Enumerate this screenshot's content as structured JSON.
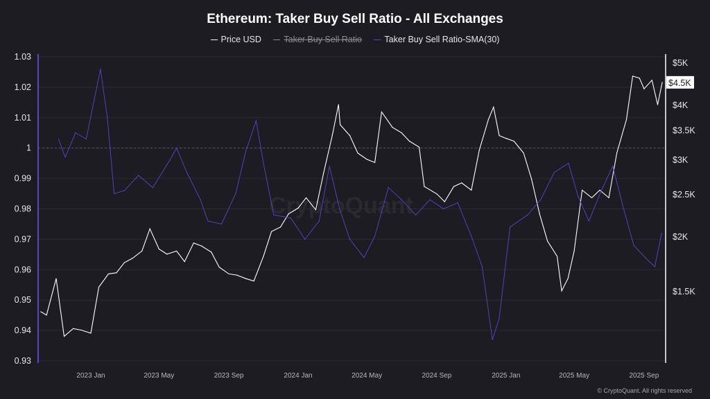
{
  "chart_data": {
    "type": "line",
    "title": "Ethereum: Taker Buy Sell Ratio - All Exchanges",
    "legend": [
      {
        "label": "Price USD",
        "color": "#ffffff",
        "hidden": false
      },
      {
        "label": "Taker Buy Sell Ratio",
        "color": "#8d8c95",
        "hidden": true
      },
      {
        "label": "Taker Buy Sell Ratio-SMA(30)",
        "color": "#5a46c8",
        "hidden": false
      }
    ],
    "legend_position": "top",
    "grid": true,
    "x_ticks": [
      "2023 Jan",
      "2023 May",
      "2023 Sep",
      "2024 Jan",
      "2024 May",
      "2024 Sep",
      "2025 Jan",
      "2025 May",
      "2025 Sep"
    ],
    "x_tick_dates": [
      "2023-01-01",
      "2023-05-01",
      "2023-09-01",
      "2024-01-01",
      "2024-05-01",
      "2024-09-01",
      "2025-01-01",
      "2025-05-01",
      "2025-09-01"
    ],
    "xlim": [
      "2022-10-01",
      "2025-10-05"
    ],
    "y_left": {
      "ticks": [
        "1.03",
        "1.02",
        "1.01",
        "1",
        "0.99",
        "0.98",
        "0.97",
        "0.96",
        "0.95",
        "0.94",
        "0.93"
      ],
      "ylim": [
        0.93,
        1.03
      ],
      "reference_line": 1
    },
    "y_right": {
      "ticks": [
        "$5K",
        "$4.5K",
        "$4K",
        "$3.5K",
        "$3K",
        "$2.5K",
        "$2K",
        "$1.5K"
      ],
      "tick_values": [
        5000,
        4500,
        4000,
        3500,
        3000,
        2500,
        2000,
        1500
      ],
      "scale": "log",
      "ylim": [
        1040,
        5150
      ]
    },
    "current_price_label": "$4.5K",
    "series": [
      {
        "name": "Price USD",
        "axis": "right",
        "color": "#ffffff",
        "points": [
          [
            "2022-10-05",
            1344
          ],
          [
            "2022-10-15",
            1320
          ],
          [
            "2022-11-01",
            1600
          ],
          [
            "2022-11-15",
            1180
          ],
          [
            "2022-12-01",
            1230
          ],
          [
            "2022-12-15",
            1220
          ],
          [
            "2023-01-01",
            1200
          ],
          [
            "2023-01-15",
            1530
          ],
          [
            "2023-02-01",
            1640
          ],
          [
            "2023-02-15",
            1650
          ],
          [
            "2023-03-01",
            1740
          ],
          [
            "2023-03-15",
            1780
          ],
          [
            "2023-04-01",
            1850
          ],
          [
            "2023-04-15",
            2080
          ],
          [
            "2023-05-01",
            1870
          ],
          [
            "2023-05-15",
            1820
          ],
          [
            "2023-06-01",
            1850
          ],
          [
            "2023-06-15",
            1750
          ],
          [
            "2023-07-01",
            1930
          ],
          [
            "2023-07-15",
            1900
          ],
          [
            "2023-08-01",
            1840
          ],
          [
            "2023-08-15",
            1700
          ],
          [
            "2023-09-01",
            1640
          ],
          [
            "2023-09-15",
            1630
          ],
          [
            "2023-10-01",
            1600
          ],
          [
            "2023-10-15",
            1580
          ],
          [
            "2023-11-01",
            1800
          ],
          [
            "2023-11-15",
            2050
          ],
          [
            "2023-12-01",
            2100
          ],
          [
            "2023-12-15",
            2250
          ],
          [
            "2024-01-01",
            2320
          ],
          [
            "2024-01-15",
            2450
          ],
          [
            "2024-02-01",
            2300
          ],
          [
            "2024-02-15",
            2800
          ],
          [
            "2024-03-01",
            3400
          ],
          [
            "2024-03-12",
            4000
          ],
          [
            "2024-03-15",
            3600
          ],
          [
            "2024-04-01",
            3400
          ],
          [
            "2024-04-15",
            3100
          ],
          [
            "2024-05-01",
            3000
          ],
          [
            "2024-05-15",
            2950
          ],
          [
            "2024-05-27",
            3850
          ],
          [
            "2024-06-15",
            3550
          ],
          [
            "2024-07-01",
            3450
          ],
          [
            "2024-07-15",
            3300
          ],
          [
            "2024-08-01",
            3200
          ],
          [
            "2024-08-10",
            2600
          ],
          [
            "2024-09-01",
            2500
          ],
          [
            "2024-09-15",
            2400
          ],
          [
            "2024-10-01",
            2600
          ],
          [
            "2024-10-15",
            2650
          ],
          [
            "2024-11-01",
            2550
          ],
          [
            "2024-11-15",
            3150
          ],
          [
            "2024-12-01",
            3700
          ],
          [
            "2024-12-10",
            3950
          ],
          [
            "2024-12-20",
            3400
          ],
          [
            "2025-01-01",
            3350
          ],
          [
            "2025-01-15",
            3300
          ],
          [
            "2025-02-01",
            3100
          ],
          [
            "2025-02-15",
            2700
          ],
          [
            "2025-03-01",
            2250
          ],
          [
            "2025-03-15",
            1950
          ],
          [
            "2025-04-01",
            1800
          ],
          [
            "2025-04-09",
            1500
          ],
          [
            "2025-04-20",
            1600
          ],
          [
            "2025-05-01",
            1850
          ],
          [
            "2025-05-15",
            2550
          ],
          [
            "2025-06-01",
            2450
          ],
          [
            "2025-06-15",
            2550
          ],
          [
            "2025-07-01",
            2450
          ],
          [
            "2025-07-15",
            3100
          ],
          [
            "2025-08-01",
            3700
          ],
          [
            "2025-08-12",
            4650
          ],
          [
            "2025-08-24",
            4600
          ],
          [
            "2025-09-01",
            4350
          ],
          [
            "2025-09-15",
            4550
          ],
          [
            "2025-09-25",
            4000
          ],
          [
            "2025-10-03",
            4500
          ]
        ]
      },
      {
        "name": "Taker Buy Sell Ratio-SMA(30)",
        "axis": "left",
        "color": "#5a46c8",
        "points": [
          [
            "2022-11-05",
            1.003
          ],
          [
            "2022-11-17",
            0.997
          ],
          [
            "2022-12-05",
            1.005
          ],
          [
            "2022-12-24",
            1.003
          ],
          [
            "2023-01-18",
            1.026
          ],
          [
            "2023-01-30",
            1.01
          ],
          [
            "2023-02-11",
            0.985
          ],
          [
            "2023-03-01",
            0.986
          ],
          [
            "2023-03-26",
            0.991
          ],
          [
            "2023-04-20",
            0.987
          ],
          [
            "2023-05-20",
            0.996
          ],
          [
            "2023-06-01",
            1.0
          ],
          [
            "2023-06-19",
            0.992
          ],
          [
            "2023-07-13",
            0.983
          ],
          [
            "2023-07-26",
            0.976
          ],
          [
            "2023-08-19",
            0.975
          ],
          [
            "2023-09-13",
            0.985
          ],
          [
            "2023-10-01",
            0.999
          ],
          [
            "2023-10-19",
            1.009
          ],
          [
            "2023-11-01",
            0.995
          ],
          [
            "2023-11-19",
            0.978
          ],
          [
            "2023-12-19",
            0.977
          ],
          [
            "2024-01-13",
            0.97
          ],
          [
            "2024-02-07",
            0.976
          ],
          [
            "2024-02-25",
            0.994
          ],
          [
            "2024-03-14",
            0.98
          ],
          [
            "2024-04-01",
            0.97
          ],
          [
            "2024-04-26",
            0.964
          ],
          [
            "2024-05-15",
            0.971
          ],
          [
            "2024-06-08",
            0.987
          ],
          [
            "2024-07-01",
            0.983
          ],
          [
            "2024-07-26",
            0.978
          ],
          [
            "2024-08-20",
            0.983
          ],
          [
            "2024-09-13",
            0.98
          ],
          [
            "2024-10-08",
            0.982
          ],
          [
            "2024-11-01",
            0.971
          ],
          [
            "2024-11-20",
            0.961
          ],
          [
            "2024-12-08",
            0.937
          ],
          [
            "2024-12-20",
            0.944
          ],
          [
            "2025-01-08",
            0.974
          ],
          [
            "2025-02-08",
            0.978
          ],
          [
            "2025-03-03",
            0.983
          ],
          [
            "2025-03-27",
            0.992
          ],
          [
            "2025-04-21",
            0.995
          ],
          [
            "2025-05-08",
            0.984
          ],
          [
            "2025-05-27",
            0.976
          ],
          [
            "2025-06-20",
            0.987
          ],
          [
            "2025-07-08",
            0.994
          ],
          [
            "2025-07-27",
            0.98
          ],
          [
            "2025-08-14",
            0.968
          ],
          [
            "2025-09-08",
            0.963
          ],
          [
            "2025-09-20",
            0.961
          ],
          [
            "2025-10-02",
            0.972
          ]
        ]
      }
    ]
  },
  "watermark": "CryptoQuant",
  "footer": "© CryptoQuant. All rights reserved"
}
